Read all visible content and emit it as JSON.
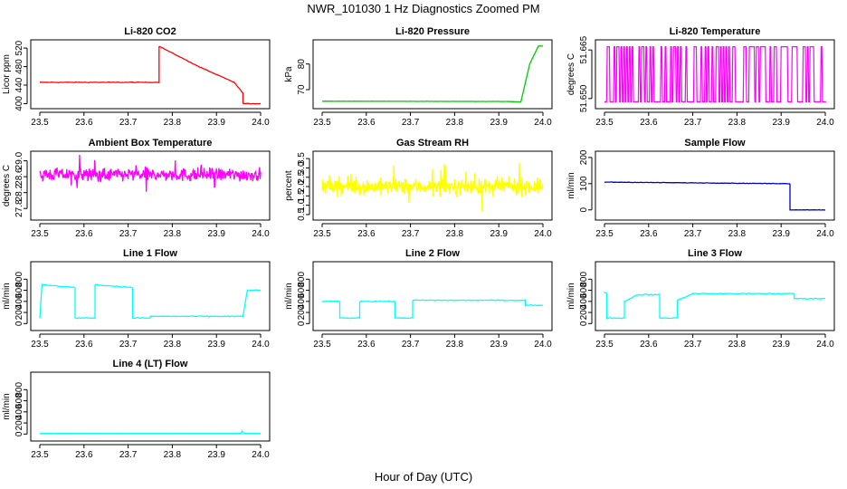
{
  "figure": {
    "title": "NWR_101030  1 Hz Diagnostics Zoomed PM",
    "xlabel": "Hour of Day (UTC)"
  },
  "chart_data": [
    {
      "id": "co2",
      "type": "line",
      "title": "Li-820 CO2",
      "ylabel": "Licor ppm",
      "color": "#ff0000",
      "xlim": [
        23.5,
        24.0
      ],
      "ylim": [
        397,
        530
      ],
      "xticks": [
        "23.5",
        "23.6",
        "23.7",
        "23.8",
        "23.9",
        "24.0"
      ],
      "yticks": [
        {
          "v": 400,
          "label": "400"
        },
        {
          "v": 440,
          "label": "440"
        },
        {
          "v": 480,
          "label": "480"
        },
        {
          "v": 520,
          "label": "520"
        }
      ],
      "style": "steps",
      "noise": 0.8,
      "series": [
        {
          "x": [
            23.5,
            23.77,
            23.77,
            23.86,
            23.86,
            23.94,
            23.94,
            23.96,
            23.96,
            24.0
          ],
          "y": [
            446,
            446,
            524,
            480,
            480,
            446,
            446,
            423,
            400,
            400
          ]
        }
      ]
    },
    {
      "id": "pressure",
      "type": "line",
      "title": "Li-820 Pressure",
      "ylabel": "kPa",
      "color": "#00cc00",
      "xlim": [
        23.5,
        24.0
      ],
      "ylim": [
        64,
        88
      ],
      "xticks": [
        "23.5",
        "23.6",
        "23.7",
        "23.8",
        "23.9",
        "24.0"
      ],
      "yticks": [
        {
          "v": 70,
          "label": "70"
        },
        {
          "v": 80,
          "label": "80"
        }
      ],
      "style": "steps",
      "noise": 0.05,
      "series": [
        {
          "x": [
            23.5,
            23.92,
            23.95,
            23.97,
            23.99,
            24.0
          ],
          "y": [
            65.5,
            65.4,
            65.2,
            80,
            87,
            87
          ]
        }
      ]
    },
    {
      "id": "li820temp",
      "type": "line",
      "title": "Li-820 Temperature",
      "ylabel": "degrees C",
      "color": "#ff00ff",
      "xlim": [
        23.5,
        24.0
      ],
      "ylim": [
        51.648,
        51.667
      ],
      "xticks": [
        "23.5",
        "23.6",
        "23.7",
        "23.8",
        "23.9",
        "24.0"
      ],
      "yticks": [
        {
          "v": 51.65,
          "label": "51.650"
        },
        {
          "v": 51.665,
          "label": "51.665"
        }
      ],
      "style": "toggle",
      "levels": [
        51.649,
        51.666
      ],
      "count": 160,
      "series": [
        {
          "x": [
            23.5,
            24.0
          ],
          "y": [
            51.649,
            51.666
          ]
        }
      ]
    },
    {
      "id": "ambient",
      "type": "line",
      "title": "Ambient Box Temperature",
      "ylabel": "degrees C",
      "color": "#ff00ff",
      "xlim": [
        23.5,
        24.0
      ],
      "ylim": [
        27.6,
        29.15
      ],
      "xticks": [
        "23.5",
        "23.6",
        "23.7",
        "23.8",
        "23.9",
        "24.0"
      ],
      "yticks": [
        {
          "v": 27.8,
          "label": "27.8"
        },
        {
          "v": 28.2,
          "label": "28.2"
        },
        {
          "v": 28.6,
          "label": "28.6"
        },
        {
          "v": 29.0,
          "label": "29.0"
        }
      ],
      "style": "noise",
      "noise": 0.2,
      "count": 450,
      "series": [
        {
          "x": [
            23.5,
            24.0
          ],
          "y": [
            28.65,
            28.65
          ]
        }
      ]
    },
    {
      "id": "rh",
      "type": "line",
      "title": "Gas Stream RH",
      "ylabel": "percent",
      "color": "#ffff00",
      "xlim": [
        23.5,
        24.0
      ],
      "ylim": [
        0.4,
        3.7
      ],
      "xticks": [
        "23.5",
        "23.6",
        "23.7",
        "23.8",
        "23.9",
        "24.0"
      ],
      "yticks": [
        {
          "v": 0.5,
          "label": "0.5"
        },
        {
          "v": 1.0,
          "label": "1.0"
        },
        {
          "v": 1.5,
          "label": "1.5"
        },
        {
          "v": 2.0,
          "label": "2.0"
        },
        {
          "v": 2.5,
          "label": "2.5"
        },
        {
          "v": 3.0,
          "label": "3.0"
        },
        {
          "v": 3.5,
          "label": "3.5"
        }
      ],
      "style": "noise",
      "noise": 0.5,
      "count": 450,
      "series": [
        {
          "x": [
            23.5,
            24.0
          ],
          "y": [
            2.0,
            2.0
          ]
        }
      ]
    },
    {
      "id": "sampleflow",
      "type": "line",
      "title": "Sample Flow",
      "ylabel": "ml/min",
      "color": "#0000cc",
      "xlim": [
        23.5,
        24.0
      ],
      "ylim": [
        -25,
        210
      ],
      "xticks": [
        "23.5",
        "23.6",
        "23.7",
        "23.8",
        "23.9",
        "24.0"
      ],
      "yticks": [
        {
          "v": 0,
          "label": "0"
        },
        {
          "v": 100,
          "label": "100"
        },
        {
          "v": 200,
          "label": "200"
        }
      ],
      "style": "steps",
      "noise": 1.2,
      "series": [
        {
          "x": [
            23.5,
            23.92,
            23.92,
            24.0
          ],
          "y": [
            106,
            100,
            0,
            0
          ]
        }
      ]
    },
    {
      "id": "line1",
      "type": "line",
      "title": "Line 1 Flow",
      "ylabel": "ml/min",
      "color": "#00ffff",
      "xlim": [
        23.5,
        24.0
      ],
      "ylim": [
        -60,
        1050
      ],
      "xticks": [
        "23.5",
        "23.6",
        "23.7",
        "23.8",
        "23.9",
        "24.0"
      ],
      "yticks": [
        {
          "v": 0,
          "label": "0"
        },
        {
          "v": 200,
          "label": "200"
        },
        {
          "v": 400,
          "label": "400"
        },
        {
          "v": 600,
          "label": "600"
        },
        {
          "v": 800,
          "label": "800"
        }
      ],
      "style": "steps",
      "noise": 12,
      "series": [
        {
          "x": [
            23.5,
            23.505,
            23.58,
            23.58,
            23.625,
            23.625,
            23.71,
            23.71,
            23.75,
            23.75,
            23.96,
            23.97,
            24.0
          ],
          "y": [
            100,
            700,
            650,
            100,
            100,
            700,
            650,
            100,
            100,
            130,
            130,
            600,
            600
          ]
        }
      ]
    },
    {
      "id": "line2",
      "type": "line",
      "title": "Line 2 Flow",
      "ylabel": "ml/min",
      "color": "#00ffff",
      "xlim": [
        23.5,
        24.0
      ],
      "ylim": [
        -60,
        1050
      ],
      "xticks": [
        "23.5",
        "23.6",
        "23.7",
        "23.8",
        "23.9",
        "24.0"
      ],
      "yticks": [
        {
          "v": 0,
          "label": "0"
        },
        {
          "v": 200,
          "label": "200"
        },
        {
          "v": 400,
          "label": "400"
        },
        {
          "v": 600,
          "label": "600"
        },
        {
          "v": 800,
          "label": "800"
        }
      ],
      "style": "steps",
      "noise": 10,
      "series": [
        {
          "x": [
            23.5,
            23.54,
            23.54,
            23.585,
            23.585,
            23.665,
            23.665,
            23.705,
            23.705,
            23.96,
            23.96,
            24.0
          ],
          "y": [
            400,
            400,
            100,
            100,
            400,
            400,
            100,
            100,
            420,
            420,
            330,
            330
          ]
        }
      ]
    },
    {
      "id": "line3",
      "type": "line",
      "title": "Line 3 Flow",
      "ylabel": "ml/min",
      "color": "#00ffff",
      "xlim": [
        23.5,
        24.0
      ],
      "ylim": [
        -60,
        1050
      ],
      "xticks": [
        "23.5",
        "23.6",
        "23.7",
        "23.8",
        "23.9",
        "24.0"
      ],
      "yticks": [
        {
          "v": 0,
          "label": "0"
        },
        {
          "v": 200,
          "label": "200"
        },
        {
          "v": 400,
          "label": "400"
        },
        {
          "v": 600,
          "label": "600"
        },
        {
          "v": 800,
          "label": "800"
        }
      ],
      "style": "steps",
      "noise": 14,
      "series": [
        {
          "x": [
            23.5,
            23.5,
            23.505,
            23.505,
            23.545,
            23.545,
            23.575,
            23.625,
            23.625,
            23.665,
            23.665,
            23.7,
            23.93,
            23.93,
            24.0
          ],
          "y": [
            550,
            550,
            560,
            100,
            100,
            400,
            520,
            520,
            100,
            100,
            420,
            540,
            540,
            450,
            450
          ]
        }
      ]
    },
    {
      "id": "line4",
      "type": "line",
      "title": "Line 4 (LT) Flow",
      "ylabel": "ml/min",
      "color": "#00ffff",
      "xlim": [
        23.5,
        24.0
      ],
      "ylim": [
        -60,
        1050
      ],
      "xticks": [
        "23.5",
        "23.6",
        "23.7",
        "23.8",
        "23.9",
        "24.0"
      ],
      "yticks": [
        {
          "v": 0,
          "label": "0"
        },
        {
          "v": 200,
          "label": "200"
        },
        {
          "v": 400,
          "label": "400"
        },
        {
          "v": 600,
          "label": "600"
        },
        {
          "v": 800,
          "label": "800"
        }
      ],
      "style": "steps",
      "noise": 2,
      "series": [
        {
          "x": [
            23.5,
            23.955,
            23.958,
            23.962,
            24.0
          ],
          "y": [
            10,
            10,
            50,
            10,
            10
          ]
        }
      ]
    }
  ]
}
